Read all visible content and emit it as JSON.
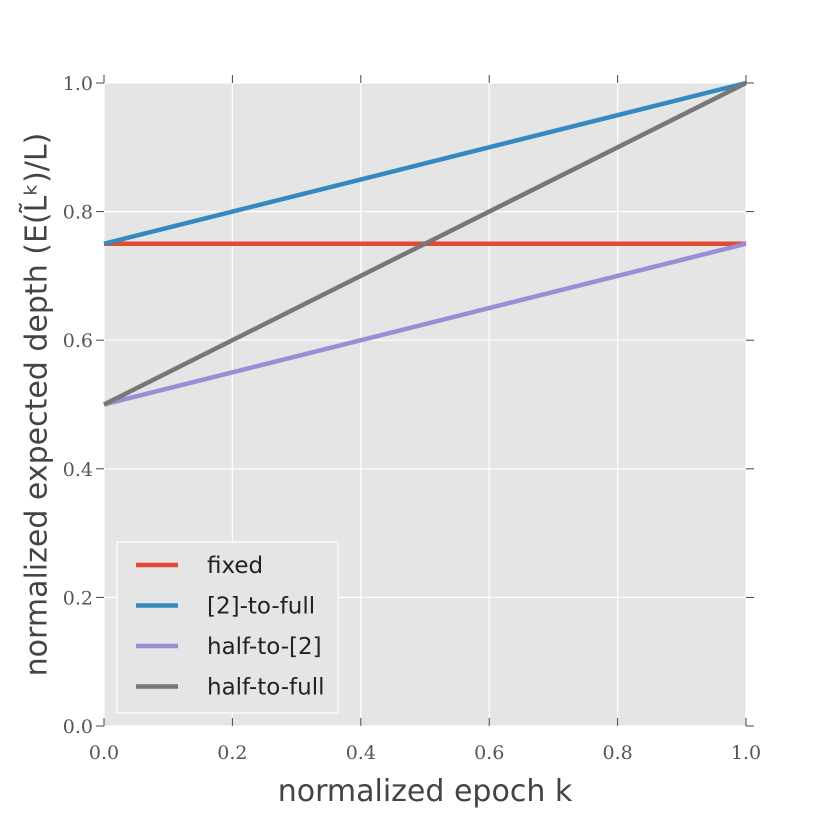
{
  "chart_data": {
    "type": "line",
    "title": "",
    "xlabel": "normalized epoch k",
    "ylabel": "normalized expected depth (E(L̃ᵏ)/L)",
    "xlim": [
      0.0,
      1.0
    ],
    "ylim": [
      0.0,
      1.0
    ],
    "xticks": [
      "0.0",
      "0.2",
      "0.4",
      "0.6",
      "0.8",
      "1.0"
    ],
    "yticks": [
      "0.0",
      "0.2",
      "0.4",
      "0.6",
      "0.8",
      "1.0"
    ],
    "grid": true,
    "legend_position": "lower-left",
    "series": [
      {
        "name": "fixed",
        "color": "#e24a33",
        "x": [
          0.0,
          1.0
        ],
        "y": [
          0.75,
          0.75
        ]
      },
      {
        "name": "[2]-to-full",
        "color": "#348abd",
        "x": [
          0.0,
          1.0
        ],
        "y": [
          0.75,
          1.0
        ]
      },
      {
        "name": "half-to-[2]",
        "color": "#988ed5",
        "x": [
          0.0,
          1.0
        ],
        "y": [
          0.5,
          0.75
        ]
      },
      {
        "name": "half-to-full",
        "color": "#777777",
        "x": [
          0.0,
          1.0
        ],
        "y": [
          0.5,
          1.0
        ]
      }
    ]
  }
}
